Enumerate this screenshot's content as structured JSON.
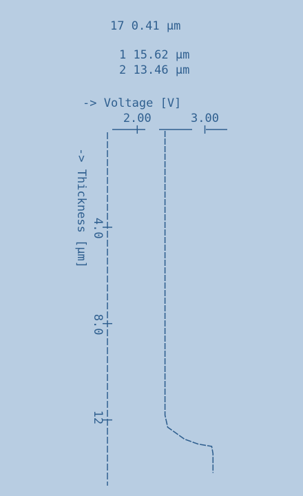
{
  "chart_data": {
    "type": "line",
    "annotations": [
      "17  0.41 µm",
      "1 15.62 µm",
      "2 13.46 µm"
    ],
    "ylabel": "-> Voltage [V]",
    "xlabel": "-> Thickness [µm]",
    "x": [
      0,
      2,
      4,
      6,
      8,
      10,
      11.8,
      12.3,
      12.8,
      13.0,
      13.1,
      13.4,
      14.2
    ],
    "values": [
      2.41,
      2.41,
      2.41,
      2.41,
      2.41,
      2.41,
      2.41,
      2.45,
      2.7,
      2.9,
      3.1,
      3.12,
      3.12
    ],
    "color": "#2f5f8f",
    "xlim": [
      0,
      14.5
    ],
    "xticks": [
      {
        "value": 4,
        "label": "4.0"
      },
      {
        "value": 8,
        "label": "8.0"
      },
      12
    ],
    "ylim": [
      1.6,
      3.3
    ],
    "yticks": [
      {
        "value": 2,
        "label": "2.00"
      },
      {
        "value": 3,
        "label": "3.00"
      }
    ]
  }
}
